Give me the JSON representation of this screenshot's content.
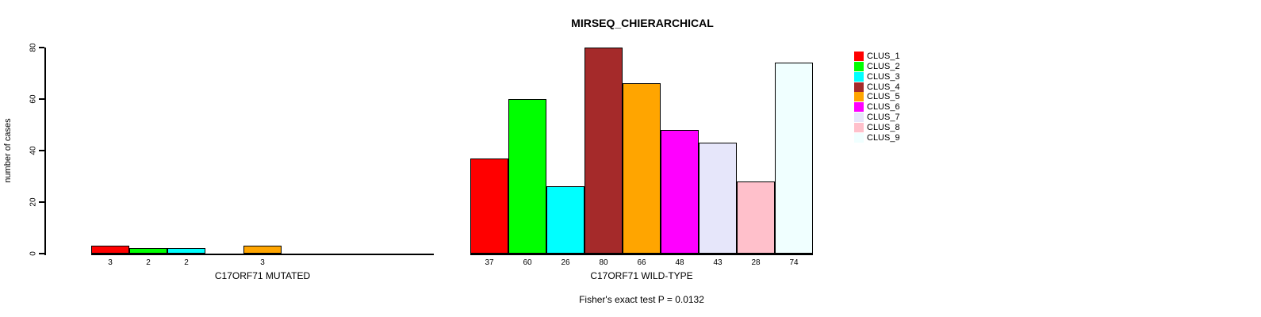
{
  "chart_data": {
    "type": "bar",
    "title": "MIRSEQ_CHIERARCHICAL",
    "ylabel": "number of cases",
    "xlabel": "",
    "ylim": [
      0,
      80
    ],
    "yticks": [
      0,
      20,
      40,
      60,
      80
    ],
    "grid": false,
    "legend_position": "right",
    "annotation": "Fisher's exact test P = 0.0132",
    "clusters": [
      {
        "name": "CLUS_1",
        "color": "#FF0000"
      },
      {
        "name": "CLUS_2",
        "color": "#00FF00"
      },
      {
        "name": "CLUS_3",
        "color": "#00FFFF"
      },
      {
        "name": "CLUS_4",
        "color": "#A52A2A"
      },
      {
        "name": "CLUS_5",
        "color": "#FFA500"
      },
      {
        "name": "CLUS_6",
        "color": "#FF00FF"
      },
      {
        "name": "CLUS_7",
        "color": "#E6E6FA"
      },
      {
        "name": "CLUS_8",
        "color": "#FFC0CB"
      },
      {
        "name": "CLUS_9",
        "color": "#F0FFFF"
      }
    ],
    "groups": [
      {
        "label": "C17ORF71 MUTATED",
        "values": [
          3,
          2,
          2,
          0,
          3,
          0,
          0,
          0,
          0
        ]
      },
      {
        "label": "C17ORF71 WILD-TYPE",
        "values": [
          37,
          60,
          26,
          80,
          66,
          48,
          43,
          28,
          74
        ]
      }
    ],
    "bar_edge_color": "#000000",
    "hide_zero_value_labels": true
  }
}
